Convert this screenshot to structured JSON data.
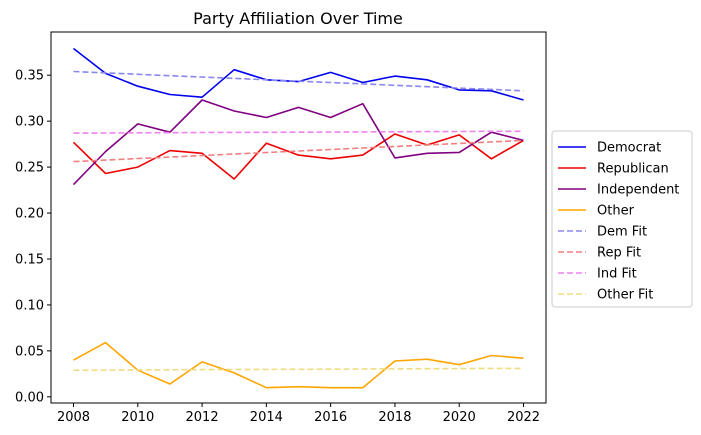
{
  "chart_data": {
    "type": "line",
    "title": "Party Affiliation Over Time",
    "xlabel": "",
    "ylabel": "",
    "x": [
      2008,
      2009,
      2010,
      2011,
      2012,
      2013,
      2014,
      2015,
      2016,
      2017,
      2018,
      2019,
      2020,
      2021,
      2022
    ],
    "xlim": [
      2007.3,
      2022.7
    ],
    "ylim": [
      -0.0067,
      0.397
    ],
    "xticks": [
      2008,
      2010,
      2012,
      2014,
      2016,
      2018,
      2020,
      2022
    ],
    "xtick_labels": [
      "2008",
      "2010",
      "2012",
      "2014",
      "2016",
      "2018",
      "2020",
      "2022"
    ],
    "yticks": [
      0.0,
      0.05,
      0.1,
      0.15,
      0.2,
      0.25,
      0.3,
      0.35
    ],
    "ytick_labels": [
      "0.00",
      "0.05",
      "0.10",
      "0.15",
      "0.20",
      "0.25",
      "0.30",
      "0.35"
    ],
    "grid": false,
    "legend_position": "center-right-outside",
    "series": [
      {
        "name": "Democrat",
        "color": "#0000ee",
        "style": "solid",
        "values": [
          0.379,
          0.352,
          0.338,
          0.329,
          0.326,
          0.356,
          0.345,
          0.343,
          0.353,
          0.342,
          0.349,
          0.345,
          0.334,
          0.333,
          0.323
        ]
      },
      {
        "name": "Republican",
        "color": "#ee0000",
        "style": "solid",
        "values": [
          0.277,
          0.243,
          0.25,
          0.268,
          0.265,
          0.237,
          0.276,
          0.263,
          0.259,
          0.263,
          0.286,
          0.274,
          0.285,
          0.259,
          0.279
        ]
      },
      {
        "name": "Independent",
        "color": "#800080",
        "style": "solid",
        "values": [
          0.231,
          0.267,
          0.297,
          0.288,
          0.323,
          0.311,
          0.304,
          0.315,
          0.304,
          0.319,
          0.26,
          0.265,
          0.266,
          0.288,
          0.279
        ]
      },
      {
        "name": "Other",
        "color": "#ffa500",
        "style": "solid",
        "values": [
          0.04,
          0.059,
          0.029,
          0.014,
          0.038,
          0.026,
          0.01,
          0.011,
          0.01,
          0.01,
          0.039,
          0.041,
          0.035,
          0.045,
          0.042
        ]
      },
      {
        "name": "Dem Fit",
        "color": "#8888ee",
        "style": "dashed",
        "values": [
          0.354,
          0.3525,
          0.351,
          0.3495,
          0.348,
          0.3465,
          0.345,
          0.3435,
          0.342,
          0.3405,
          0.339,
          0.3375,
          0.336,
          0.3345,
          0.333
        ]
      },
      {
        "name": "Rep Fit",
        "color": "#f08080",
        "style": "dashed",
        "values": [
          0.256,
          0.2576,
          0.2593,
          0.2609,
          0.2626,
          0.2642,
          0.2659,
          0.2675,
          0.2691,
          0.2708,
          0.2724,
          0.2741,
          0.2757,
          0.2774,
          0.279
        ]
      },
      {
        "name": "Ind Fit",
        "color": "#ee82ee",
        "style": "dashed",
        "values": [
          0.287,
          0.2871,
          0.2873,
          0.2874,
          0.2876,
          0.2877,
          0.2879,
          0.288,
          0.2881,
          0.2883,
          0.2884,
          0.2886,
          0.2887,
          0.2889,
          0.289
        ]
      },
      {
        "name": "Other Fit",
        "color": "#eedd82",
        "style": "dashed",
        "values": [
          0.029,
          0.0291,
          0.0293,
          0.0294,
          0.0296,
          0.0297,
          0.0299,
          0.03,
          0.0301,
          0.0303,
          0.0304,
          0.0306,
          0.0307,
          0.0309,
          0.031
        ]
      }
    ]
  }
}
